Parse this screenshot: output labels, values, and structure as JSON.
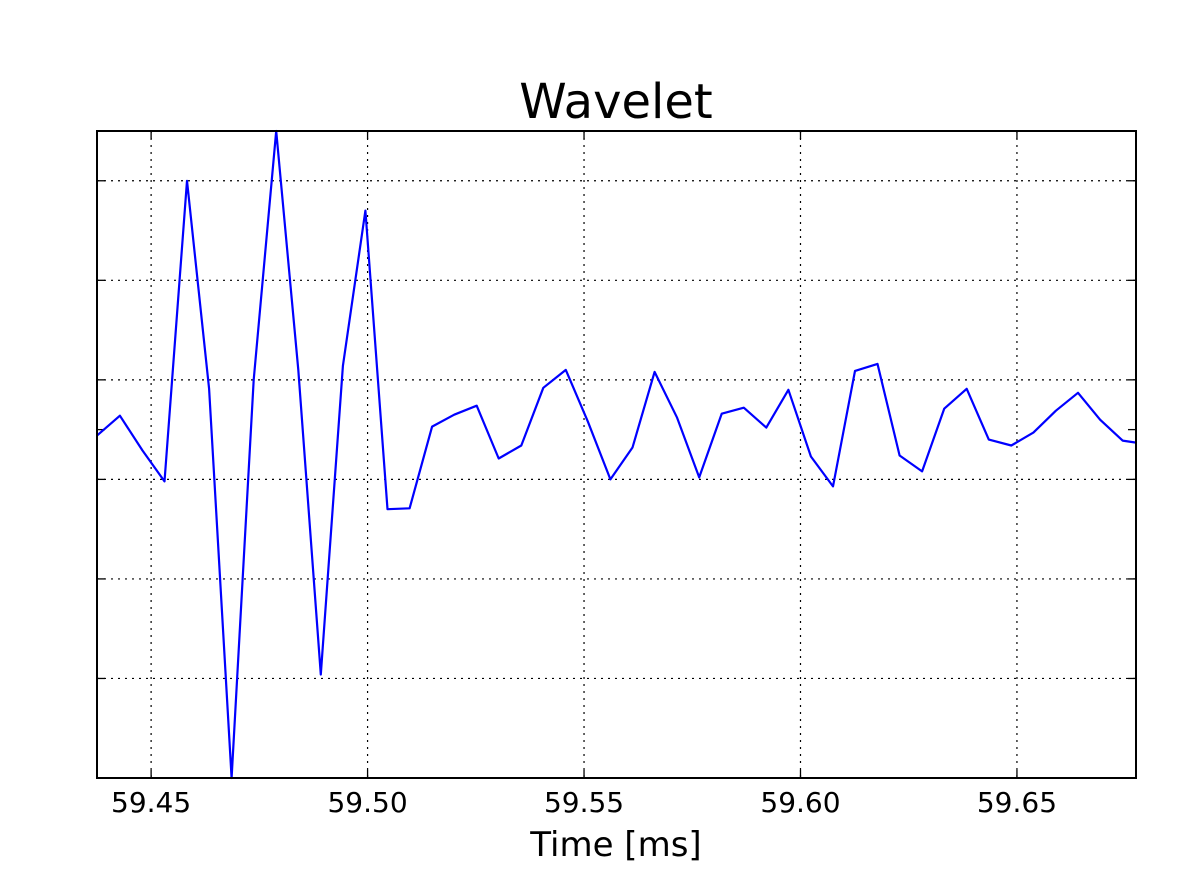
{
  "chart_data": {
    "type": "line",
    "title": "Wavelet",
    "xlabel": "Time [ms]",
    "ylabel": "",
    "xlim": [
      59.4375,
      59.6775
    ],
    "ylim": [
      -0.35,
      0.3
    ],
    "x_ticks": [
      59.45,
      59.5,
      59.55,
      59.6,
      59.65
    ],
    "x_tick_labels": [
      "59.45",
      "59.50",
      "59.55",
      "59.60",
      "59.65"
    ],
    "y_grid_values": [
      -0.25,
      -0.15,
      -0.05,
      0.05,
      0.15,
      0.25
    ],
    "y_tick_values": [
      -0.25,
      -0.15,
      -0.05,
      0.0,
      0.05,
      0.15,
      0.25
    ],
    "grid": true,
    "legend": "none",
    "series": [
      {
        "color": "#0000ff",
        "x": [
          59.4375,
          59.4428,
          59.448,
          59.4531,
          59.4583,
          59.4634,
          59.4686,
          59.4737,
          59.4789,
          59.484,
          59.4892,
          59.4943,
          59.4995,
          59.5046,
          59.5097,
          59.5149,
          59.52,
          59.5252,
          59.5303,
          59.5355,
          59.5406,
          59.5458,
          59.5509,
          59.5561,
          59.5612,
          59.5663,
          59.5715,
          59.5766,
          59.5818,
          59.5869,
          59.5921,
          59.5972,
          59.6024,
          59.6075,
          59.6126,
          59.6178,
          59.6229,
          59.6281,
          59.6332,
          59.6384,
          59.6435,
          59.6487,
          59.6538,
          59.659,
          59.6641,
          59.6692,
          59.6744,
          59.6775
        ],
        "y": [
          -0.006,
          0.014,
          -0.021,
          -0.052,
          0.25,
          0.041,
          -0.35,
          0.05,
          0.3,
          0.06,
          -0.246,
          0.064,
          0.22,
          -0.08,
          -0.079,
          0.003,
          0.015,
          0.024,
          -0.029,
          -0.016,
          0.042,
          0.06,
          0.008,
          -0.05,
          -0.018,
          0.058,
          0.012,
          -0.048,
          0.016,
          0.022,
          0.002,
          0.04,
          -0.027,
          -0.057,
          0.059,
          0.066,
          -0.026,
          -0.042,
          0.021,
          0.041,
          -0.01,
          -0.016,
          -0.003,
          0.019,
          0.037,
          0.01,
          -0.011,
          -0.013
        ]
      }
    ]
  }
}
